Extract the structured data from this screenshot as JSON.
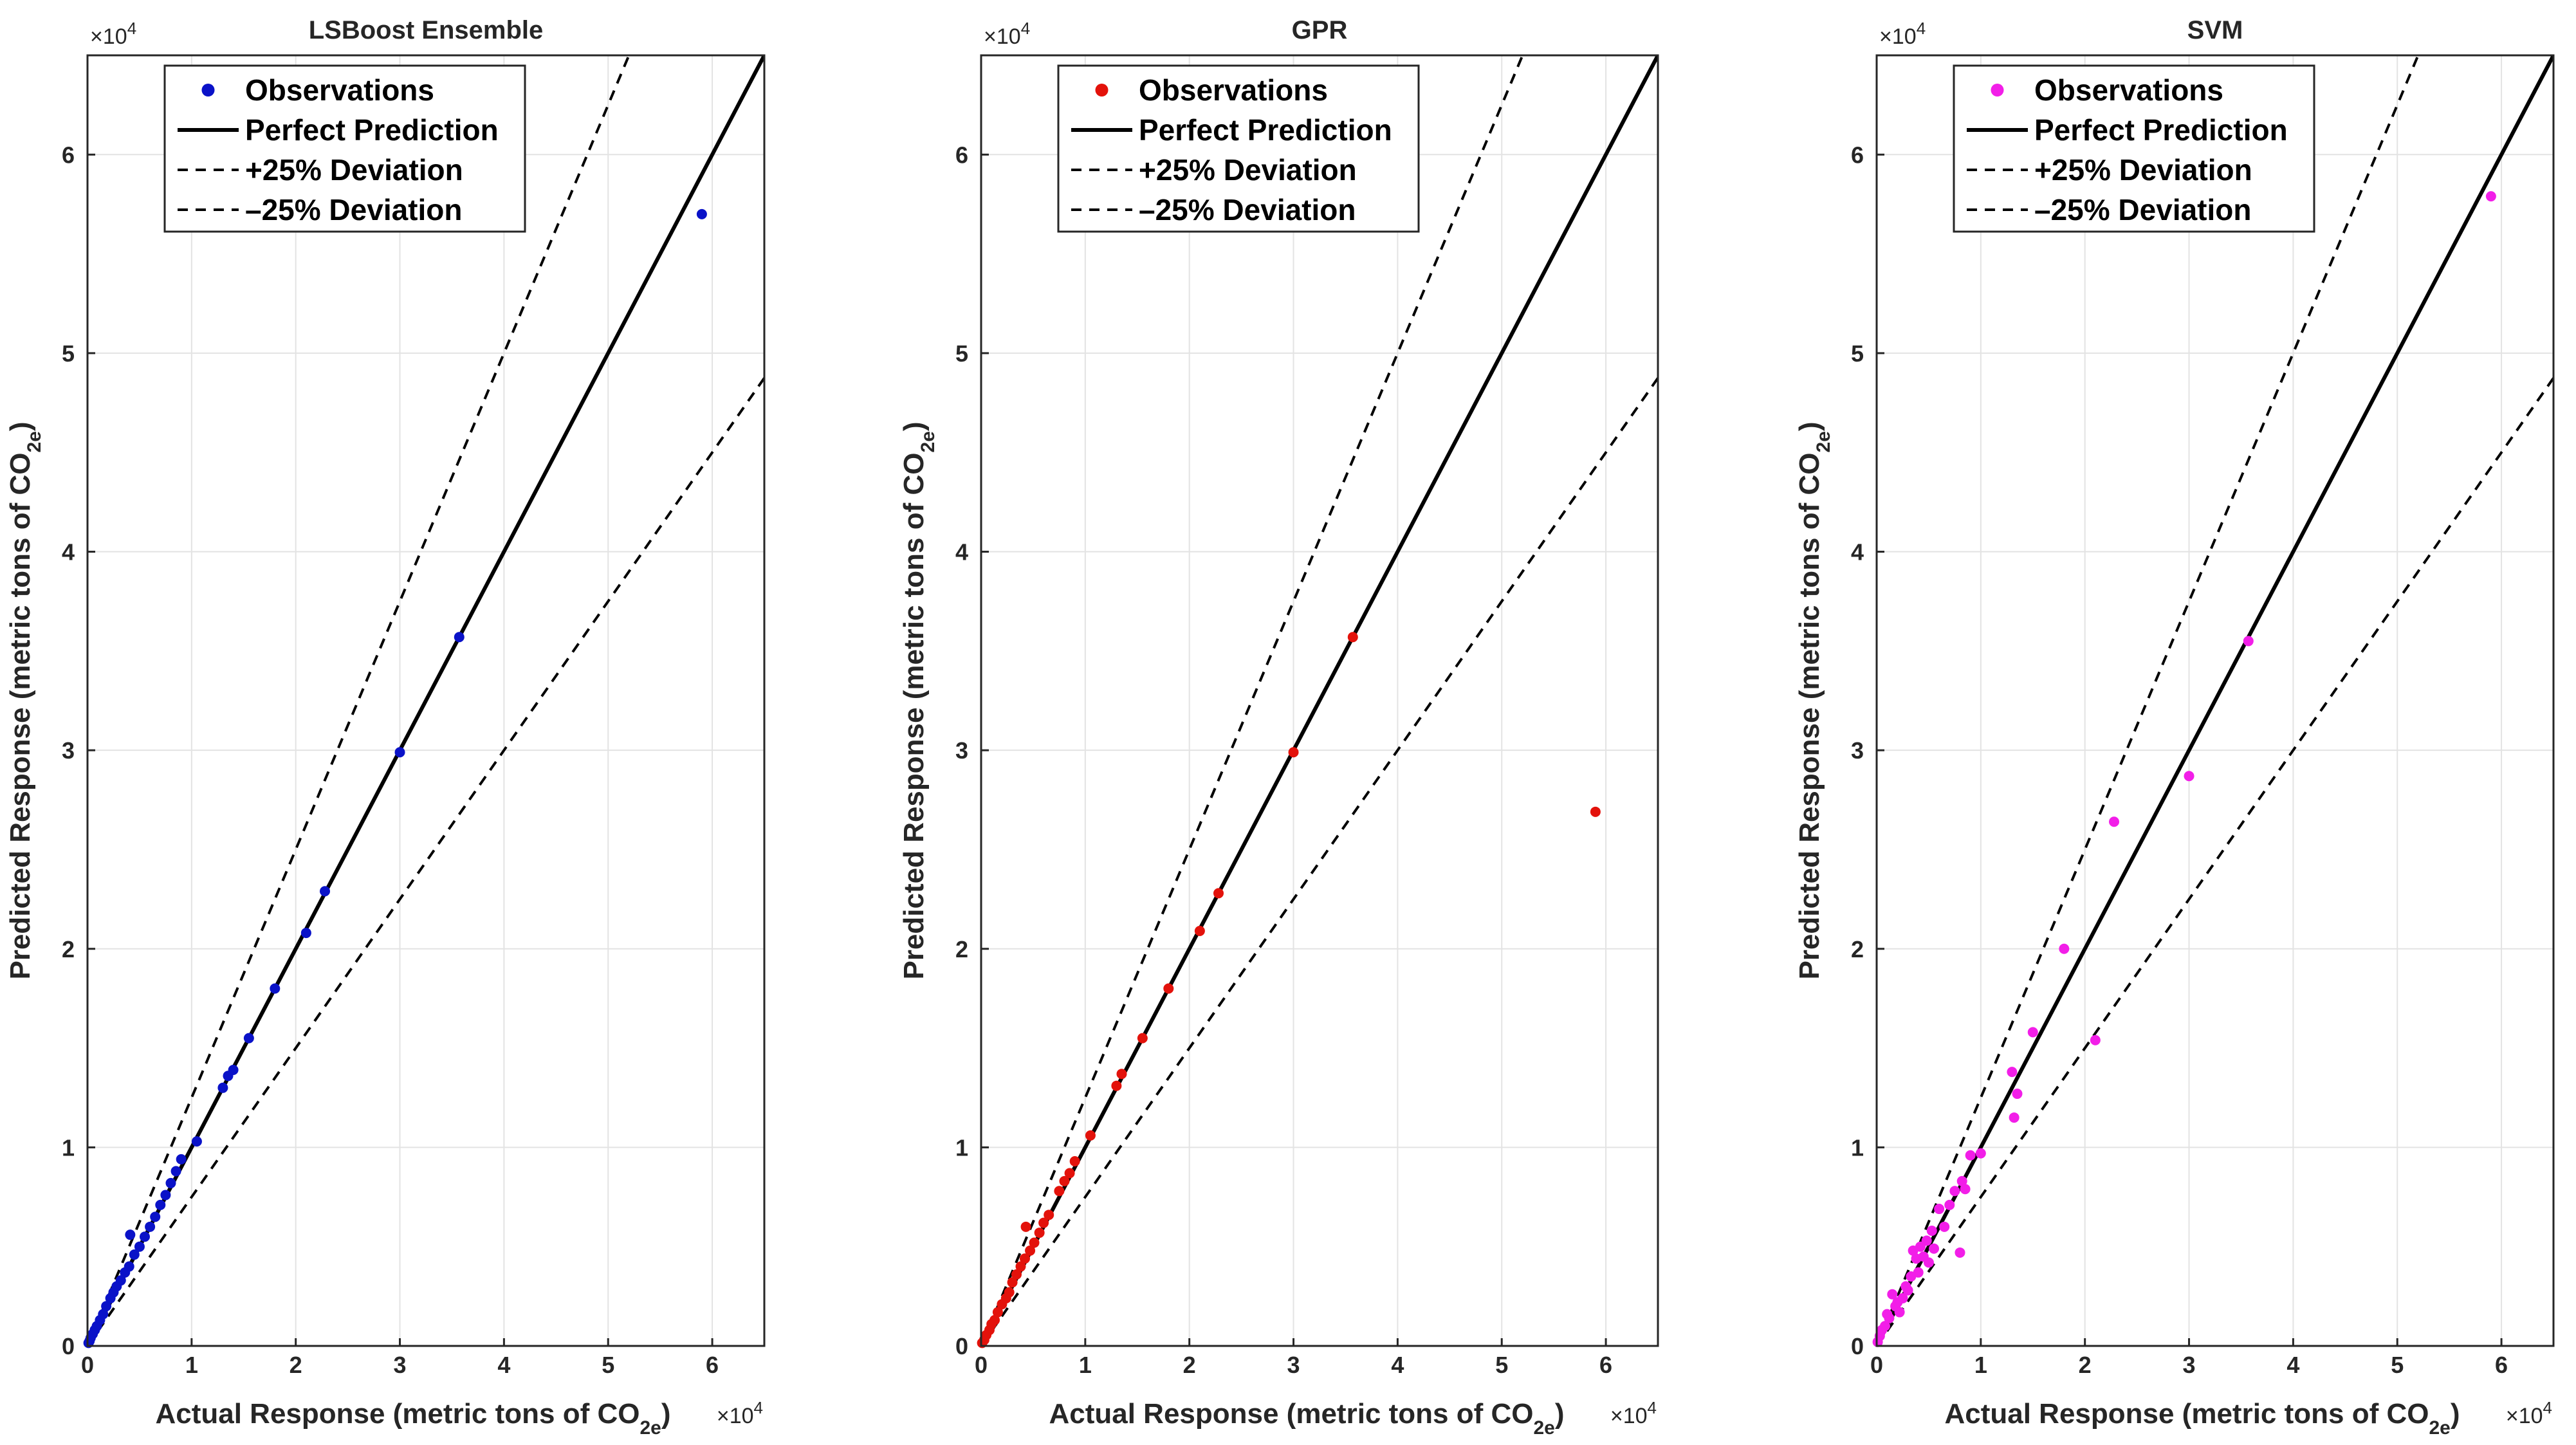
{
  "figure": {
    "colors": {
      "axes": "#262626",
      "grid": "#e3e3e3",
      "line": "#000000"
    }
  },
  "chart_data": [
    {
      "type": "scatter",
      "title": "LSBoost Ensemble",
      "xlabel": "Actual Response (metric tons of CO2e)",
      "ylabel": "Predicted Response (metric tons of CO2e)",
      "xlim": [
        0,
        65000
      ],
      "ylim": [
        0,
        65000
      ],
      "axis_multiplier": "×10^4",
      "xticks": [
        0,
        1,
        2,
        3,
        4,
        5,
        6
      ],
      "yticks": [
        0,
        1,
        2,
        3,
        4,
        5,
        6
      ],
      "grid": true,
      "legend_position": "top-left",
      "marker_color": "#0a12c8",
      "series": [
        {
          "name": "Observations",
          "kind": "scatter",
          "x": [
            100,
            200,
            300,
            500,
            700,
            900,
            1200,
            1500,
            1800,
            2200,
            2500,
            2800,
            3200,
            3600,
            4000,
            4100,
            4500,
            5000,
            5500,
            6000,
            6500,
            7000,
            7500,
            8000,
            8500,
            9000,
            10500,
            13000,
            13500,
            14000,
            15500,
            18000,
            21000,
            22800,
            30000,
            35700,
            59000
          ],
          "y": [
            150,
            250,
            400,
            600,
            800,
            1000,
            1300,
            1600,
            2000,
            2400,
            2700,
            3000,
            3300,
            3700,
            4000,
            5600,
            4600,
            5000,
            5500,
            6000,
            6500,
            7100,
            7600,
            8200,
            8800,
            9400,
            10300,
            13000,
            13600,
            13900,
            15500,
            18000,
            20800,
            22900,
            29900,
            35700,
            57000
          ]
        },
        {
          "name": "Perfect Prediction",
          "kind": "line",
          "slope": 1.0
        },
        {
          "name": "+25% Deviation",
          "kind": "dashed",
          "slope": 1.25
        },
        {
          "name": "–25% Deviation",
          "kind": "dashed",
          "slope": 0.75
        }
      ]
    },
    {
      "type": "scatter",
      "title": "GPR",
      "xlabel": "Actual Response (metric tons of CO2e)",
      "ylabel": "Predicted Response (metric tons of CO2e)",
      "xlim": [
        0,
        65000
      ],
      "ylim": [
        0,
        65000
      ],
      "axis_multiplier": "×10^4",
      "xticks": [
        0,
        1,
        2,
        3,
        4,
        5,
        6
      ],
      "yticks": [
        0,
        1,
        2,
        3,
        4,
        5,
        6
      ],
      "grid": true,
      "legend_position": "top-left",
      "marker_color": "#e3120b",
      "series": [
        {
          "name": "Observations",
          "kind": "scatter",
          "x": [
            100,
            300,
            500,
            800,
            1000,
            1300,
            1600,
            2000,
            2400,
            2700,
            3000,
            3400,
            3800,
            4200,
            4300,
            4700,
            5100,
            5600,
            6000,
            6500,
            7500,
            8000,
            8500,
            9000,
            10500,
            13000,
            13500,
            15500,
            18000,
            21000,
            22800,
            30000,
            35700,
            59000
          ],
          "y": [
            150,
            300,
            550,
            800,
            1100,
            1300,
            1700,
            2100,
            2400,
            2700,
            3200,
            3600,
            4000,
            4400,
            6000,
            4800,
            5200,
            5700,
            6200,
            6600,
            7800,
            8300,
            8700,
            9300,
            10600,
            13100,
            13700,
            15500,
            18000,
            20900,
            22800,
            29900,
            35700,
            26900
          ]
        },
        {
          "name": "Perfect Prediction",
          "kind": "line",
          "slope": 1.0
        },
        {
          "name": "+25% Deviation",
          "kind": "dashed",
          "slope": 1.25
        },
        {
          "name": "–25% Deviation",
          "kind": "dashed",
          "slope": 0.75
        }
      ]
    },
    {
      "type": "scatter",
      "title": "SVM",
      "xlabel": "Actual Response (metric tons of CO2e)",
      "ylabel": "Predicted Response (metric tons of CO2e)",
      "xlim": [
        0,
        65000
      ],
      "ylim": [
        0,
        65000
      ],
      "axis_multiplier": "×10^4",
      "xticks": [
        0,
        1,
        2,
        3,
        4,
        5,
        6
      ],
      "yticks": [
        0,
        1,
        2,
        3,
        4,
        5,
        6
      ],
      "grid": true,
      "legend_position": "top-left",
      "marker_color": "#f21ee8",
      "series": [
        {
          "name": "Observations",
          "kind": "scatter",
          "x": [
            100,
            300,
            500,
            800,
            1000,
            1200,
            1500,
            1800,
            2000,
            2200,
            2500,
            2800,
            3000,
            3300,
            3500,
            3800,
            4000,
            4200,
            4500,
            4800,
            5000,
            5300,
            5500,
            6000,
            6500,
            7000,
            7500,
            8000,
            8200,
            8500,
            9000,
            10000,
            13000,
            13200,
            13500,
            15000,
            18000,
            21000,
            22800,
            30000,
            35700,
            59000
          ],
          "y": [
            200,
            500,
            800,
            1000,
            1600,
            1400,
            2600,
            2000,
            2200,
            1700,
            2400,
            3000,
            2800,
            3500,
            4800,
            4400,
            3700,
            5000,
            4500,
            5300,
            4200,
            5800,
            4900,
            6900,
            6000,
            7100,
            7800,
            4700,
            8300,
            7900,
            9600,
            9700,
            13800,
            11500,
            12700,
            15800,
            20000,
            15400,
            26400,
            28700,
            35500,
            57900
          ]
        },
        {
          "name": "Perfect Prediction",
          "kind": "line",
          "slope": 1.0
        },
        {
          "name": "+25% Deviation",
          "kind": "dashed",
          "slope": 1.25
        },
        {
          "name": "–25% Deviation",
          "kind": "dashed",
          "slope": 0.75
        }
      ]
    }
  ]
}
